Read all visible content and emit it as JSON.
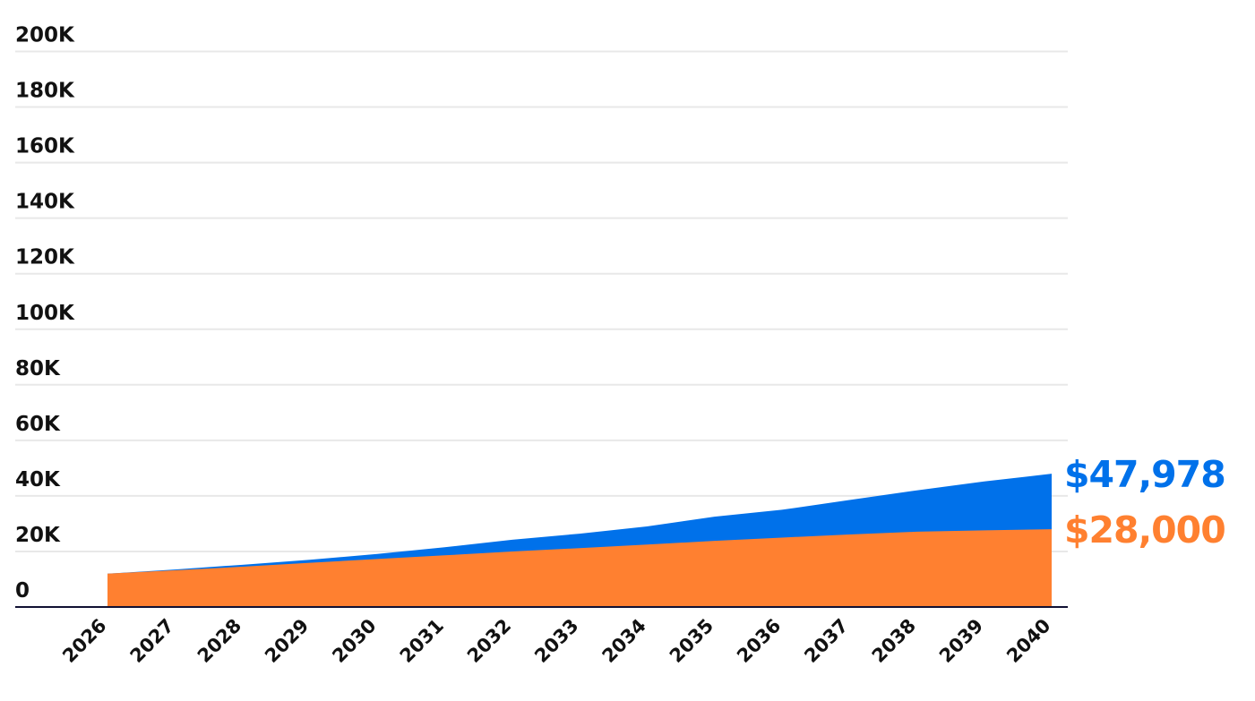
{
  "chart_data": {
    "type": "area",
    "title": "",
    "xlabel": "",
    "ylabel": "",
    "x": [
      2026,
      2027,
      2028,
      2029,
      2030,
      2031,
      2032,
      2033,
      2034,
      2035,
      2036,
      2037,
      2038,
      2039,
      2040
    ],
    "x_tick_labels": [
      "2026",
      "2027",
      "2028",
      "2029",
      "2030",
      "2031",
      "2032",
      "2033",
      "2034",
      "2035",
      "2036",
      "2037",
      "2038",
      "2039",
      "2040"
    ],
    "ylim": [
      0,
      200000
    ],
    "y_ticks": [
      0,
      20000,
      40000,
      60000,
      80000,
      100000,
      120000,
      140000,
      160000,
      180000,
      200000
    ],
    "y_tick_labels": [
      "0",
      "20K",
      "40K",
      "60K",
      "80K",
      "100K",
      "120K",
      "140K",
      "160K",
      "180K",
      "200K"
    ],
    "grid": true,
    "series": [
      {
        "color": "#0071ea",
        "values": [
          12000,
          13500,
          15200,
          17000,
          19100,
          21500,
          24200,
          26400,
          29000,
          32500,
          35000,
          38500,
          42000,
          45200,
          47978
        ],
        "end_label": "$47,978"
      },
      {
        "color": "#ff8030",
        "values": [
          12000,
          13200,
          14500,
          15900,
          17300,
          18600,
          20000,
          21200,
          22500,
          23800,
          25000,
          26100,
          27100,
          27600,
          28000
        ],
        "end_label": "$28,000"
      }
    ]
  }
}
